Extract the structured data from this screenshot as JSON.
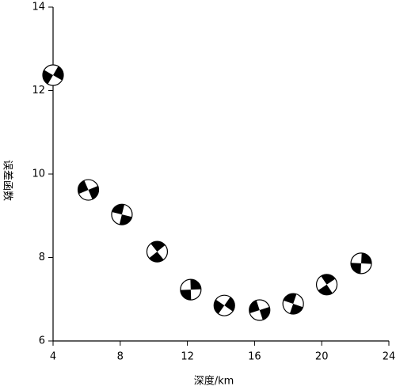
{
  "chart_data": {
    "type": "scatter",
    "x_label": "深度/km",
    "y_label": "误差函数",
    "x": [
      4,
      6.1,
      8.1,
      10.2,
      12.2,
      14.2,
      16.3,
      18.3,
      20.3,
      22.35
    ],
    "values": [
      12.37,
      9.62,
      9.03,
      8.14,
      7.23,
      6.85,
      6.74,
      6.89,
      7.35,
      7.86
    ],
    "color": "#000000",
    "xlim": [
      4,
      24
    ],
    "xticks": [
      4,
      8,
      12,
      16,
      20,
      24
    ],
    "ylim": [
      6,
      14
    ],
    "yticks": [
      6,
      8,
      10,
      12,
      14
    ],
    "grid": false
  }
}
